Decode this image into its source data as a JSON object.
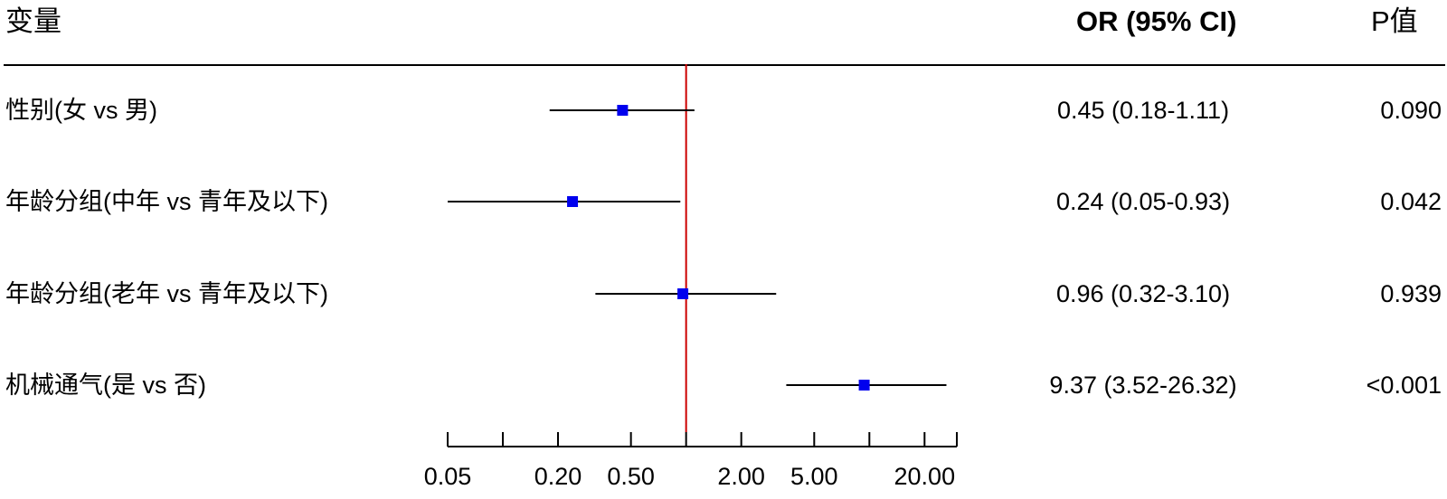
{
  "headers": {
    "variable": "变量",
    "or_ci": "OR (95% CI)",
    "p_value": "P值"
  },
  "chart_data": {
    "type": "forest",
    "x_scale": "log",
    "reference_line": 1,
    "reference_color": "#cc0000",
    "point_color": "#0000ee",
    "xlim": [
      0.05,
      30
    ],
    "x_ticks": [
      0.05,
      0.1,
      0.2,
      0.5,
      1,
      2,
      5,
      10,
      20,
      30
    ],
    "x_tick_labels": [
      "0.05",
      "",
      "0.20",
      "0.50",
      "",
      "2.00",
      "5.00",
      "",
      "20.00",
      ""
    ],
    "rows": [
      {
        "label": "性别(女 vs 男)",
        "or": 0.45,
        "lower": 0.18,
        "upper": 1.11,
        "or_text": "0.45 (0.18-1.11)",
        "p_text": "0.090"
      },
      {
        "label": "年龄分组(中年 vs 青年及以下)",
        "or": 0.24,
        "lower": 0.05,
        "upper": 0.93,
        "or_text": "0.24 (0.05-0.93)",
        "p_text": "0.042"
      },
      {
        "label": "年龄分组(老年 vs 青年及以下)",
        "or": 0.96,
        "lower": 0.32,
        "upper": 3.1,
        "or_text": "0.96 (0.32-3.10)",
        "p_text": "0.939"
      },
      {
        "label": "机械通气(是 vs 否)",
        "or": 9.37,
        "lower": 3.52,
        "upper": 26.32,
        "or_text": "9.37 (3.52-26.32)",
        "p_text": "<0.001"
      }
    ]
  }
}
